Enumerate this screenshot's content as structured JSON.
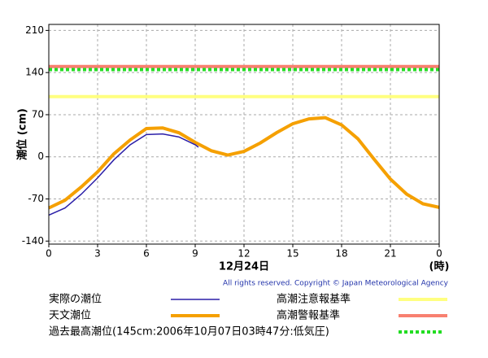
{
  "chart_data": {
    "type": "line",
    "ylabel": "潮位 (cm)",
    "xlabel": "12月24日",
    "xunit": "(時)",
    "copyright": "All rights reserved. Copyright © Japan Meteorological Agency",
    "xlim": [
      0,
      24
    ],
    "xticks": [
      0,
      3,
      6,
      9,
      12,
      15,
      18,
      21,
      {
        "value": 24,
        "label": "0"
      }
    ],
    "ylim": [
      -145,
      220
    ],
    "yticks": [
      -140,
      -70,
      0,
      70,
      140,
      210
    ],
    "grid": true,
    "series": [
      {
        "name": "実際の潮位",
        "color": "#2b1fa8",
        "x": [
          0,
          1,
          2,
          3,
          4,
          5,
          6,
          7,
          8,
          9,
          9.2
        ],
        "values": [
          -97,
          -85,
          -62,
          -35,
          -5,
          20,
          37,
          38,
          33,
          20,
          16
        ]
      },
      {
        "name": "天文潮位",
        "color": "#f5a000",
        "x": [
          0,
          1,
          2,
          3,
          4,
          5,
          6,
          7,
          8,
          9,
          10,
          11,
          12,
          13,
          14,
          15,
          16,
          17,
          18,
          19,
          20,
          21,
          22,
          23,
          24
        ],
        "values": [
          -85,
          -72,
          -50,
          -25,
          5,
          28,
          47,
          48,
          40,
          24,
          10,
          3,
          9,
          23,
          40,
          55,
          63,
          65,
          53,
          30,
          -4,
          -37,
          -62,
          -78,
          -84
        ]
      }
    ],
    "reference_lines": [
      {
        "name": "高潮注意報基準",
        "color": "#ffff80",
        "value": 100,
        "style": "solid"
      },
      {
        "name": "高潮警報基準",
        "color": "#f88070",
        "value": 150,
        "style": "solid"
      },
      {
        "name": "過去最高潮位(145cm:2006年10月07日03時47分:低気圧)",
        "color": "#22dd22",
        "value": 145,
        "style": "dotted"
      }
    ]
  }
}
